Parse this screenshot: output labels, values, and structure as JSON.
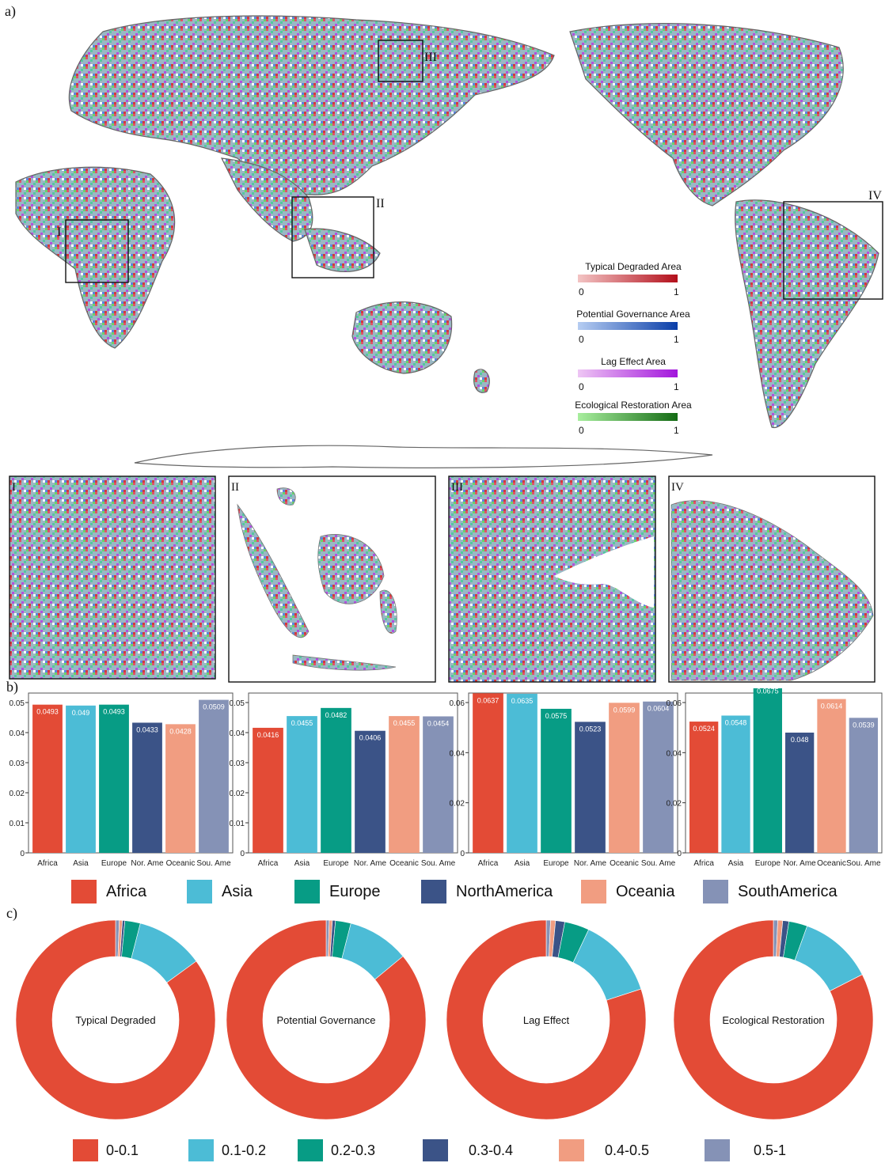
{
  "panels": {
    "a": "a)",
    "b": "b)",
    "c": "c)"
  },
  "map": {
    "box_labels": [
      "I",
      "II",
      "III",
      "IV"
    ],
    "legends": [
      {
        "title": "Typical Degraded Area",
        "min": "0",
        "max": "1",
        "from": "#f3c4c4",
        "to": "#b30f1b"
      },
      {
        "title": "Potential Governance Area",
        "min": "0",
        "max": "1",
        "from": "#b6cdf2",
        "to": "#0a3ea8"
      },
      {
        "title": "Lag Effect Area",
        "min": "0",
        "max": "1",
        "from": "#eec6f4",
        "to": "#a215dc"
      },
      {
        "title": "Ecological Restoration Area",
        "min": "0",
        "max": "1",
        "from": "#a8ee9e",
        "to": "#146b14"
      }
    ]
  },
  "insets": [
    "I",
    "II",
    "III",
    "IV"
  ],
  "continent_colors": [
    "#e34b36",
    "#4cbcd6",
    "#079c85",
    "#3b5387",
    "#f19d81",
    "#8592b6"
  ],
  "continent_legend": [
    "Africa",
    "Asia",
    "Europe",
    "NorthAmerica",
    "Oceania",
    "SouthAmerica"
  ],
  "chart_data": [
    {
      "type": "bar",
      "categories": [
        "Africa",
        "Asia",
        "Europe",
        "Nor. Ame",
        "Oceanic",
        "Sou. Ame"
      ],
      "values": [
        0.0493,
        0.049,
        0.0493,
        0.0433,
        0.0428,
        0.0509
      ],
      "value_labels": [
        "0.0493",
        "0.049",
        "0.0493",
        "0.0433",
        "0.0428",
        "0.0509"
      ],
      "ylim": [
        0,
        0.05
      ],
      "yticks": [
        0,
        0.01,
        0.02,
        0.03,
        0.04,
        0.05
      ],
      "ytick_labels": [
        "0",
        "0.01",
        "0.02",
        "0.03",
        "0.04",
        "0.05"
      ]
    },
    {
      "type": "bar",
      "categories": [
        "Africa",
        "Asia",
        "Europe",
        "Nor. Ame",
        "Oceanic",
        "Sou. Ame"
      ],
      "values": [
        0.0416,
        0.0455,
        0.0482,
        0.0406,
        0.0455,
        0.0454
      ],
      "value_labels": [
        "0.0416",
        "0.0455",
        "0.0482",
        "0.0406",
        "0.0455",
        "0.0454"
      ],
      "ylim": [
        0,
        0.05
      ],
      "yticks": [
        0,
        0.01,
        0.02,
        0.03,
        0.04,
        0.05
      ],
      "ytick_labels": [
        "0",
        "0.01",
        "0.02",
        "0.03",
        "0.04",
        "0.05"
      ]
    },
    {
      "type": "bar",
      "categories": [
        "Africa",
        "Asia",
        "Europe",
        "Nor. Ame",
        "Oceanic",
        "Sou. Ame"
      ],
      "values": [
        0.0637,
        0.0635,
        0.0575,
        0.0523,
        0.0599,
        0.0604
      ],
      "value_labels": [
        "0.0637",
        "0.0635",
        "0.0575",
        "0.0523",
        "0.0599",
        "0.0604"
      ],
      "ylim": [
        0,
        0.06
      ],
      "yticks": [
        0,
        0.02,
        0.04,
        0.06
      ],
      "ytick_labels": [
        "0",
        "0.02",
        "0.04",
        "0.06"
      ]
    },
    {
      "type": "bar",
      "categories": [
        "Africa",
        "Asia",
        "Europe",
        "Nor. Ame",
        "Oceanic",
        "Sou. Ame"
      ],
      "values": [
        0.0524,
        0.0548,
        0.0675,
        0.048,
        0.0614,
        0.0539
      ],
      "value_labels": [
        "0.0524",
        "0.0548",
        "0.0675",
        "0.048",
        "0.0614",
        "0.0539"
      ],
      "ylim": [
        0,
        0.06
      ],
      "yticks": [
        0,
        0.02,
        0.04,
        0.06
      ],
      "ytick_labels": [
        "0",
        "0.02",
        "0.04",
        "0.06"
      ]
    },
    {
      "type": "pie",
      "label": "Typical Degraded",
      "categories": [
        "0-0.1",
        "0.1-0.2",
        "0.2-0.3",
        "0.3-0.4",
        "0.4-0.5",
        "0.5-1"
      ],
      "values": [
        85.0,
        11.0,
        2.5,
        0.4,
        0.5,
        0.6
      ]
    },
    {
      "type": "pie",
      "label": "Potential Governance",
      "categories": [
        "0-0.1",
        "0.1-0.2",
        "0.2-0.3",
        "0.3-0.4",
        "0.4-0.5",
        "0.5-1"
      ],
      "values": [
        86.0,
        10.0,
        2.5,
        0.5,
        0.5,
        0.5
      ]
    },
    {
      "type": "pie",
      "label": "Lag Effect",
      "categories": [
        "0-0.1",
        "0.1-0.2",
        "0.2-0.3",
        "0.3-0.4",
        "0.4-0.5",
        "0.5-1"
      ],
      "values": [
        80.0,
        13.0,
        4.0,
        1.5,
        0.8,
        0.7
      ]
    },
    {
      "type": "pie",
      "label": "Ecological Restoration",
      "categories": [
        "0-0.1",
        "0.1-0.2",
        "0.2-0.3",
        "0.3-0.4",
        "0.4-0.5",
        "0.5-1"
      ],
      "values": [
        82.5,
        12.0,
        3.0,
        1.0,
        0.8,
        0.7
      ]
    }
  ],
  "range_legend": [
    "0-0.1",
    "0.1-0.2",
    "0.2-0.3",
    "0.3-0.4",
    "0.4-0.5",
    "0.5-1"
  ]
}
